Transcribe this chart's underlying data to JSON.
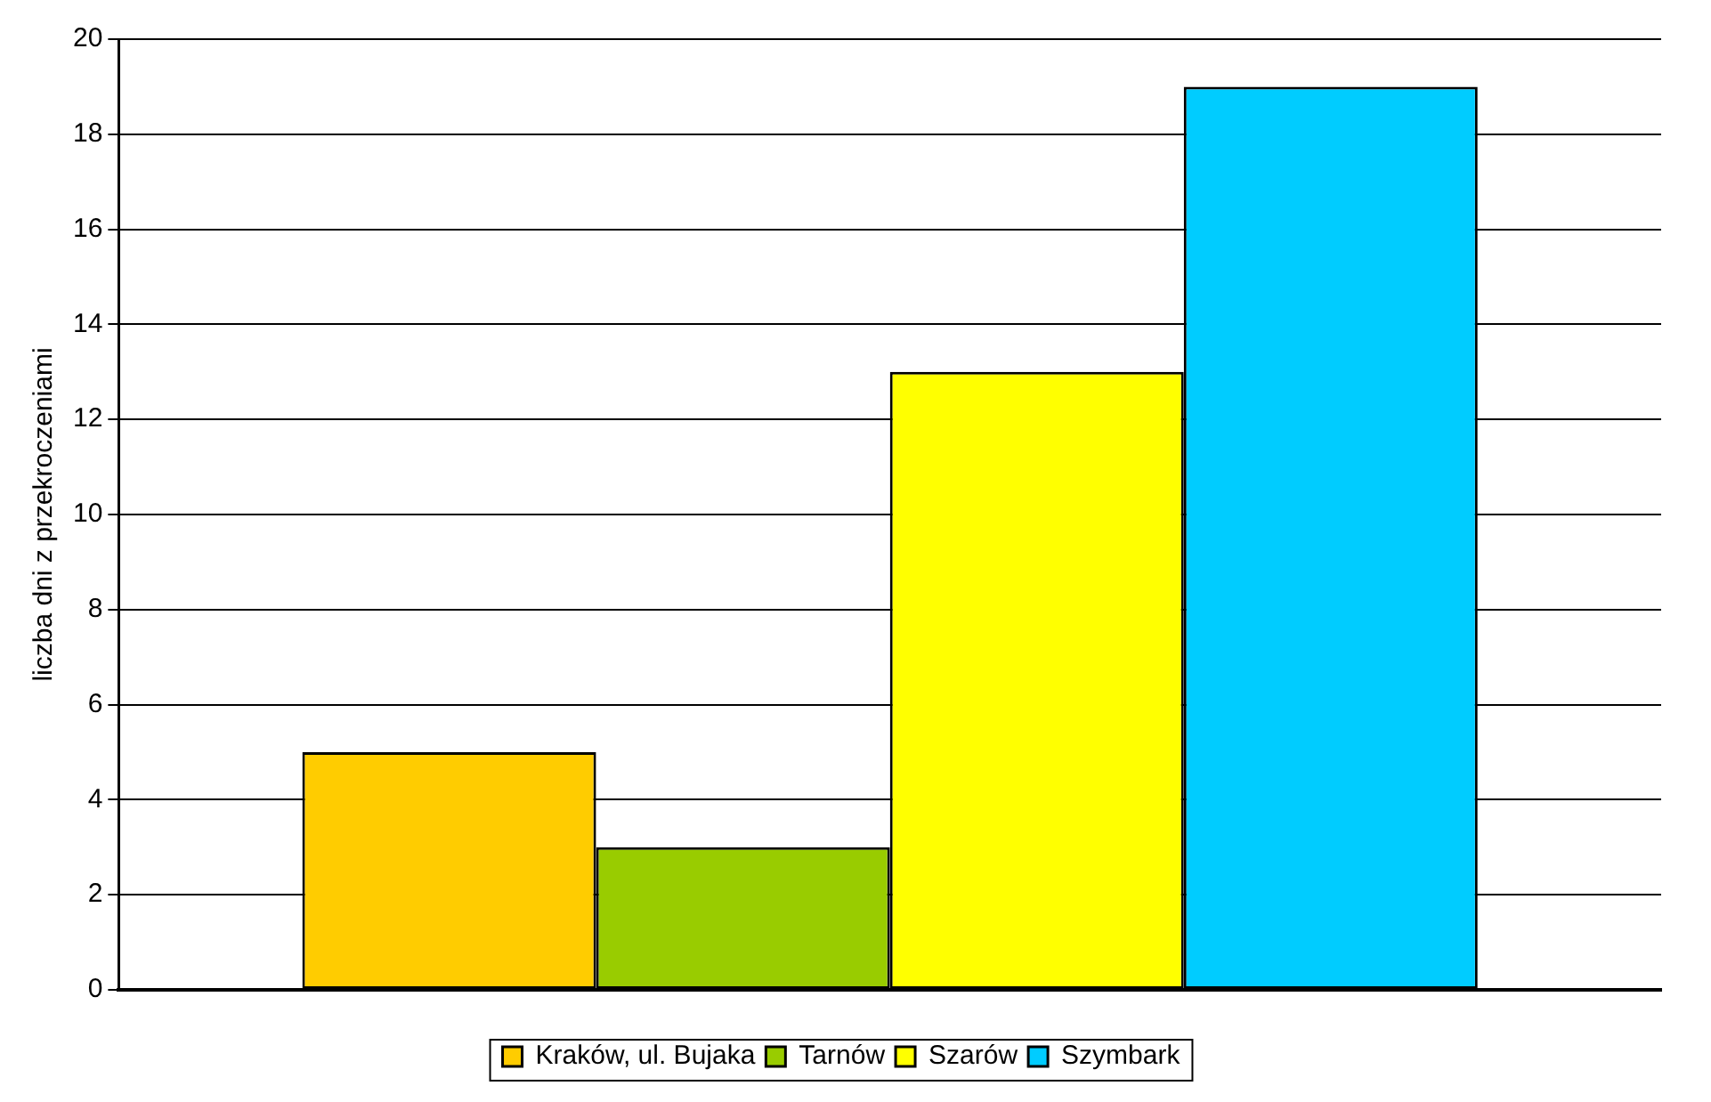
{
  "chart_data": {
    "type": "bar",
    "ylabel": "liczba dni z przekroczeniami",
    "categories": [
      null
    ],
    "series": [
      {
        "name": "Kraków, ul. Bujaka",
        "color": "#ffcc00",
        "values": [
          5
        ]
      },
      {
        "name": "Tarnów",
        "color": "#99cc00",
        "values": [
          3
        ]
      },
      {
        "name": "Szarów",
        "color": "#ffff00",
        "values": [
          13
        ]
      },
      {
        "name": "Szymbark",
        "color": "#00ccff",
        "values": [
          19
        ]
      }
    ],
    "ylim": [
      0,
      20
    ],
    "yticks": [
      0,
      2,
      4,
      6,
      8,
      10,
      12,
      14,
      16,
      18,
      20
    ],
    "grid": "y",
    "legend": "bottom"
  }
}
